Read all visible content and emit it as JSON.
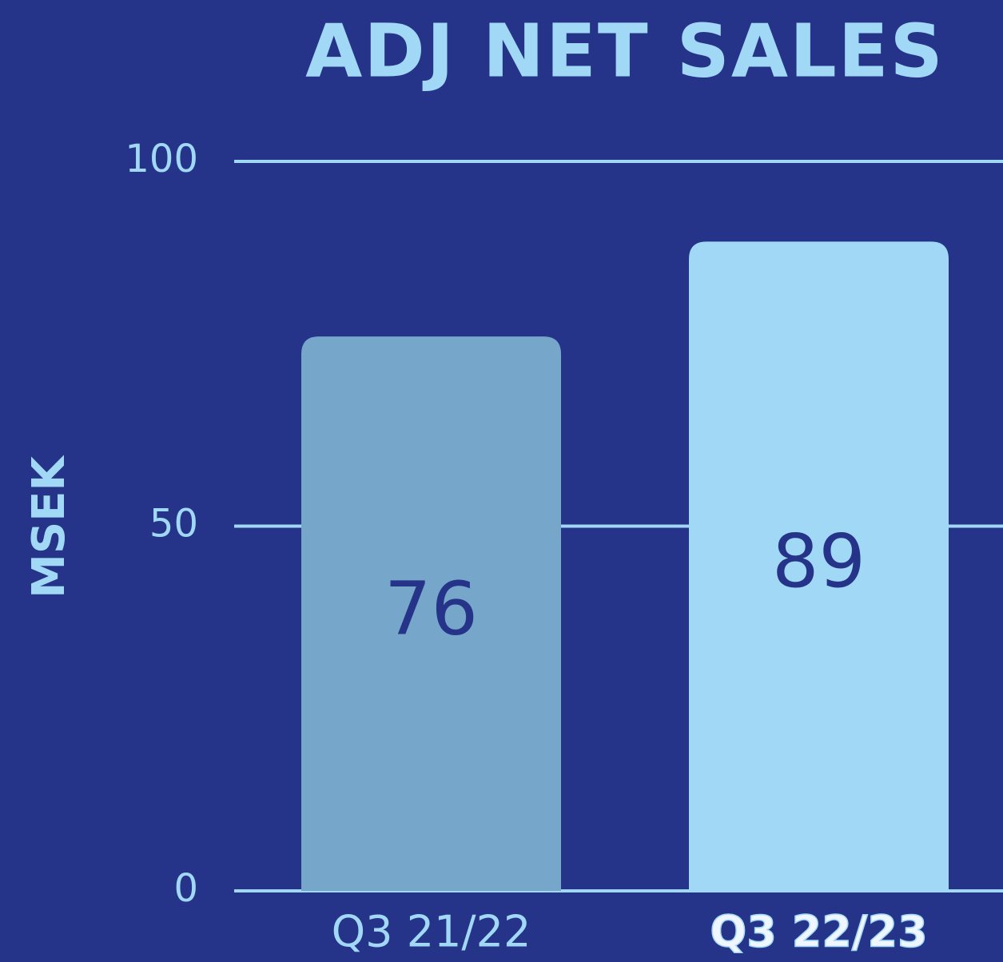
{
  "chart_data": {
    "type": "bar",
    "title": "ADJ NET SALES",
    "y_label": "MSEK",
    "categories": [
      "Q3 21/22",
      "Q3 22/23"
    ],
    "values": [
      76,
      89
    ],
    "colors": [
      "#76a7cb",
      "#a0d8f5"
    ],
    "ylim": [
      0,
      100
    ],
    "yticks": [
      0,
      50,
      100
    ],
    "grid": true
  }
}
